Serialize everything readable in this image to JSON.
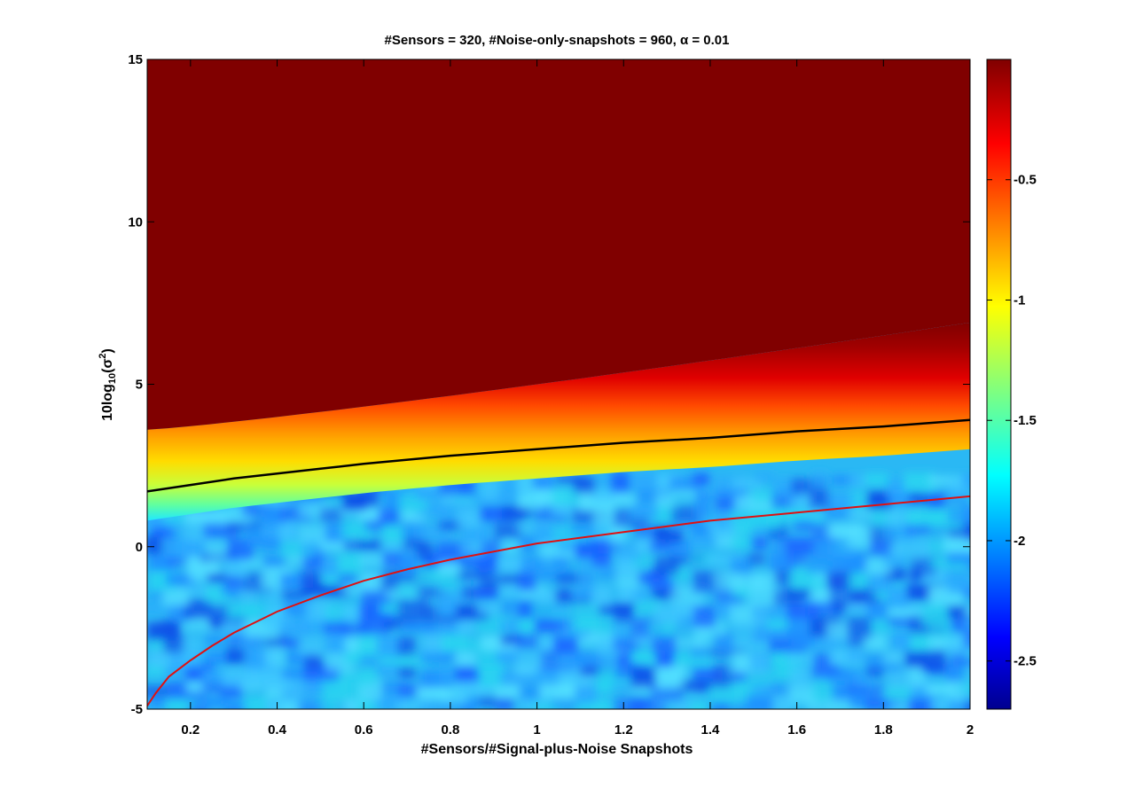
{
  "chart_data": {
    "type": "heatmap",
    "title": "#Sensors = 320, #Noise-only-snapshots = 960, α = 0.01",
    "xlabel": "#Sensors/#Signal-plus-Noise Snapshots",
    "ylabel_base": "10log",
    "ylabel_sub": "10",
    "ylabel_open": "(σ",
    "ylabel_sup": "2",
    "ylabel_close": ")",
    "xlim": [
      0.1,
      2
    ],
    "ylim": [
      -5,
      15
    ],
    "x_ticks": [
      0.2,
      0.4,
      0.6,
      0.8,
      1,
      1.2,
      1.4,
      1.6,
      1.8,
      2
    ],
    "x_tick_labels": [
      "0.2",
      "0.4",
      "0.6",
      "0.8",
      "1",
      "1.2",
      "1.4",
      "1.6",
      "1.8",
      "2"
    ],
    "y_ticks": [
      -5,
      0,
      5,
      10,
      15
    ],
    "y_tick_labels": [
      "-5",
      "0",
      "5",
      "10",
      "15"
    ],
    "colorbar": {
      "colormap": "jet",
      "clim": [
        -2.7,
        0
      ],
      "ticks": [
        -0.5,
        -1,
        -1.5,
        -2,
        -2.5
      ],
      "tick_labels": [
        "-0.5",
        "-1",
        "-1.5",
        "-2",
        "-2.5"
      ]
    },
    "surface_description": "value saturates near 0 above the transition band, decreases through the band to about -1.9 with noise below",
    "series": [
      {
        "color": "#000000",
        "x": [
          0.1,
          0.2,
          0.3,
          0.4,
          0.5,
          0.6,
          0.8,
          1.0,
          1.2,
          1.4,
          1.6,
          1.8,
          2.0
        ],
        "y": [
          1.7,
          1.9,
          2.1,
          2.25,
          2.4,
          2.55,
          2.8,
          3.0,
          3.2,
          3.35,
          3.55,
          3.7,
          3.9
        ]
      },
      {
        "color": "#e01010",
        "x": [
          0.1,
          0.12,
          0.15,
          0.2,
          0.25,
          0.3,
          0.4,
          0.5,
          0.6,
          0.7,
          0.8,
          1.0,
          1.2,
          1.4,
          1.6,
          1.8,
          2.0
        ],
        "y": [
          -4.9,
          -4.5,
          -4.0,
          -3.5,
          -3.05,
          -2.65,
          -2.0,
          -1.5,
          -1.05,
          -0.7,
          -0.4,
          0.1,
          0.45,
          0.8,
          1.05,
          1.3,
          1.55
        ]
      }
    ]
  }
}
